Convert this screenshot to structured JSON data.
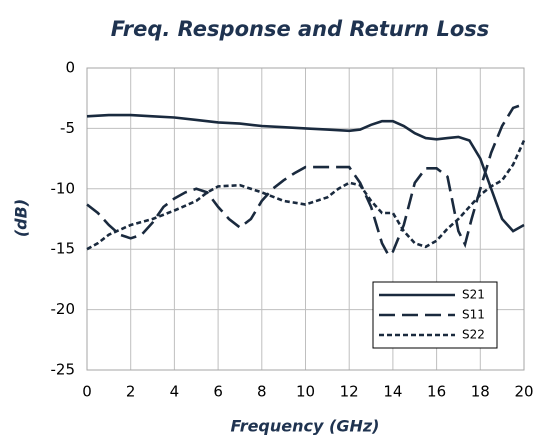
{
  "chart_data": {
    "type": "line",
    "title": "Freq. Response and Return Loss",
    "x_label": "Frequency (GHz)",
    "y_label": "(dB)",
    "xlim": [
      0,
      20
    ],
    "xticks": [
      0,
      2,
      4,
      6,
      8,
      10,
      12,
      14,
      16,
      18,
      20
    ],
    "ylim": [
      -25,
      0
    ],
    "yticks": [
      -25,
      -20,
      -15,
      -10,
      -5,
      0
    ],
    "grid": true,
    "legend": "lower right",
    "series": [
      {
        "name": "S21",
        "color": "#1a2a3e",
        "style": "solid",
        "x": [
          0,
          1,
          2,
          3,
          4,
          5,
          6,
          7,
          8,
          9,
          10,
          11,
          12,
          12.5,
          13,
          13.5,
          14,
          14.5,
          15,
          15.5,
          16,
          16.5,
          17,
          17.5,
          18,
          18.5,
          19,
          19.5,
          20
        ],
        "values": [
          -4.0,
          -3.9,
          -3.9,
          -4.0,
          -4.1,
          -4.3,
          -4.5,
          -4.6,
          -4.8,
          -4.9,
          -5.0,
          -5.1,
          -5.2,
          -5.1,
          -4.7,
          -4.4,
          -4.4,
          -4.8,
          -5.4,
          -5.8,
          -5.9,
          -5.8,
          -5.7,
          -6.0,
          -7.5,
          -10.0,
          -12.5,
          -13.5,
          -13.0
        ]
      },
      {
        "name": "S11",
        "color": "#1a2a3e",
        "style": "dashed",
        "x": [
          0,
          0.5,
          1,
          1.5,
          2,
          2.5,
          3,
          3.5,
          4,
          4.5,
          5,
          5.5,
          6,
          6.5,
          7,
          7.5,
          8,
          8.5,
          9,
          9.5,
          10,
          11,
          12,
          12.5,
          13,
          13.5,
          13.8,
          14,
          14.5,
          15,
          15.5,
          16,
          16.5,
          17,
          17.3,
          17.6,
          18,
          18.5,
          19,
          19.5,
          20
        ],
        "values": [
          -11.3,
          -12.0,
          -13.0,
          -13.8,
          -14.1,
          -13.8,
          -12.8,
          -11.5,
          -10.8,
          -10.3,
          -10.0,
          -10.3,
          -11.5,
          -12.5,
          -13.2,
          -12.5,
          -11.0,
          -10.0,
          -9.3,
          -8.7,
          -8.2,
          -8.2,
          -8.2,
          -9.5,
          -11.5,
          -14.5,
          -15.5,
          -15.2,
          -13.0,
          -9.5,
          -8.3,
          -8.3,
          -9.0,
          -13.5,
          -14.6,
          -12.5,
          -10.0,
          -7.0,
          -4.8,
          -3.3,
          -3.0
        ]
      },
      {
        "name": "S22",
        "color": "#1a2a3e",
        "style": "dotted",
        "x": [
          0,
          0.5,
          1,
          2,
          3,
          4,
          5,
          5.5,
          6,
          7,
          8,
          9,
          10,
          11,
          11.5,
          12,
          12.5,
          13,
          13.5,
          14,
          14.5,
          15,
          15.5,
          16,
          16.5,
          17,
          17.5,
          18,
          18.5,
          19,
          19.5,
          20
        ],
        "values": [
          -15.0,
          -14.5,
          -13.8,
          -13.0,
          -12.5,
          -11.8,
          -11.0,
          -10.3,
          -9.8,
          -9.7,
          -10.3,
          -11.0,
          -11.3,
          -10.7,
          -10.0,
          -9.5,
          -9.7,
          -11.0,
          -12.0,
          -12.0,
          -13.5,
          -14.5,
          -14.8,
          -14.3,
          -13.3,
          -12.5,
          -11.5,
          -10.5,
          -9.8,
          -9.3,
          -8.0,
          -6.0
        ]
      }
    ]
  }
}
